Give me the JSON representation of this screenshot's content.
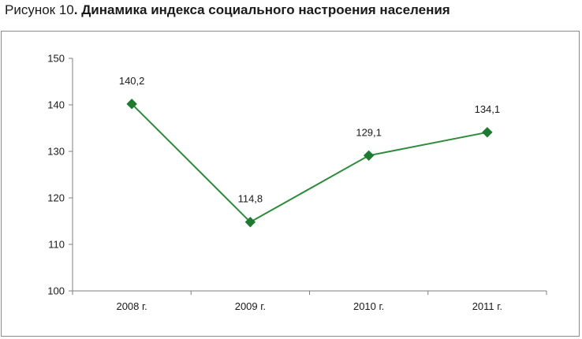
{
  "caption": {
    "number": "Рисунок 10",
    "title": ". Динамика индекса социального настроения населения"
  },
  "chart_data": {
    "type": "line",
    "title": "",
    "xlabel": "",
    "ylabel": "",
    "categories": [
      "2008 г.",
      "2009 г.",
      "2010 г.",
      "2011 г."
    ],
    "series": [
      {
        "values": [
          140.2,
          114.8,
          129.1,
          134.1
        ]
      }
    ],
    "data_labels": [
      "140,2",
      "114,8",
      "129,1",
      "134,1"
    ],
    "ylim": [
      100,
      150
    ],
    "yticks": [
      100,
      110,
      120,
      130,
      140,
      150
    ],
    "grid": false,
    "legend": "none",
    "marker": "diamond",
    "colors": {
      "line": "#2e8b3a",
      "marker": "#1e7a30",
      "axis": "#7f7f7f"
    }
  }
}
